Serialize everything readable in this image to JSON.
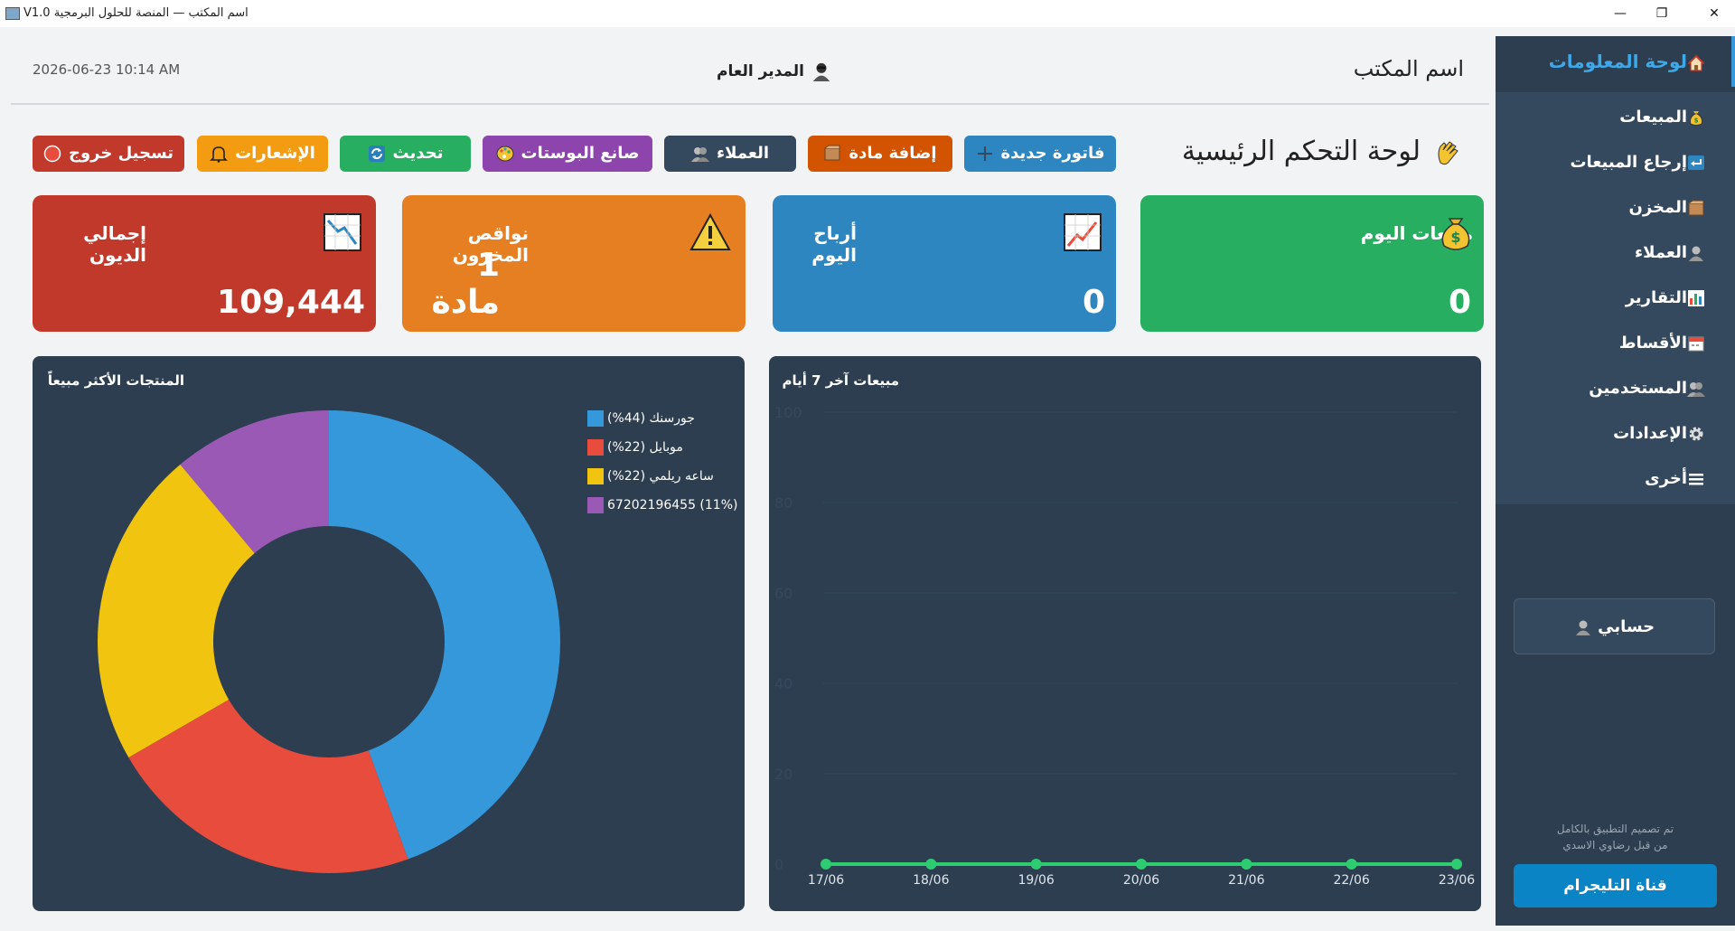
{
  "window": {
    "title": "V1.0 اسم المكتب — المنصة للحلول البرمجية"
  },
  "header": {
    "office_name": "اسم المكتب",
    "user": "المدير العام",
    "datetime": "2026-06-23  10:14 AM"
  },
  "page": {
    "title": "لوحة التحكم الرئيسية"
  },
  "toolbar": [
    {
      "key": "new-invoice",
      "label": "فاتورة جديدة",
      "color": "#2e86c1"
    },
    {
      "key": "add-item",
      "label": "إضافة مادة",
      "color": "#d35400"
    },
    {
      "key": "customers",
      "label": "العملاء",
      "color": "#34495e"
    },
    {
      "key": "poster-maker",
      "label": "صانع البوستات",
      "color": "#8e44ad"
    },
    {
      "key": "refresh",
      "label": "تحديث",
      "color": "#27ae60"
    },
    {
      "key": "notifications",
      "label": "الإشعارات",
      "color": "#f39c12"
    },
    {
      "key": "logout",
      "label": "تسجيل خروج",
      "color": "#c0392b"
    }
  ],
  "cards": [
    {
      "key": "today-sales",
      "title": "مبيعات اليوم",
      "value": "0",
      "color": "#27ae60",
      "icon": "money-bag-icon"
    },
    {
      "key": "today-profit",
      "title": "أرباح اليوم",
      "value": "0",
      "color": "#2e86c1",
      "icon": "chart-up-icon"
    },
    {
      "key": "stock-shortage",
      "title": "نواقص المخزون",
      "value": "1 مادة",
      "color": "#e67e22",
      "icon": "warning-icon"
    },
    {
      "key": "total-debts",
      "title": "إجمالي الديون",
      "value": "109,444",
      "color": "#c0392b",
      "icon": "chart-down-icon"
    }
  ],
  "sidebar": {
    "items": [
      {
        "key": "dashboard",
        "label": "لوحة المعلومات",
        "icon": "home-icon",
        "active": true
      },
      {
        "key": "sales",
        "label": "المبيعات",
        "icon": "money-bag-icon"
      },
      {
        "key": "sales-returns",
        "label": "إرجاع المبيعات",
        "icon": "return-arrow-icon"
      },
      {
        "key": "inventory",
        "label": "المخزن",
        "icon": "box-icon"
      },
      {
        "key": "customers",
        "label": "العملاء",
        "icon": "user-icon"
      },
      {
        "key": "reports",
        "label": "التقارير",
        "icon": "bar-chart-icon"
      },
      {
        "key": "installments",
        "label": "الأقساط",
        "icon": "calendar-icon"
      },
      {
        "key": "users",
        "label": "المستخدمين",
        "icon": "users-icon"
      },
      {
        "key": "settings",
        "label": "الإعدادات",
        "icon": "gear-icon"
      },
      {
        "key": "other",
        "label": "أخرى",
        "icon": "menu-icon"
      }
    ],
    "account_label": "حسابي",
    "credit_line1": "تم تصميم التطبيق بالكامل",
    "credit_line2": "من قبل رضاوي الاسدي",
    "telegram_label": "قناة التليجرام"
  },
  "chart_data": [
    {
      "type": "pie",
      "title": "المنتجات الأكثر مبيعاً",
      "donut": true,
      "legend_position": "top-right",
      "slices": [
        {
          "label": "جورسنك (44%)",
          "value": 44,
          "color": "#3498db"
        },
        {
          "label": "موبايل (22%)",
          "value": 22,
          "color": "#e74c3c"
        },
        {
          "label": "ساعه ريلمي (22%)",
          "value": 22,
          "color": "#f1c40f"
        },
        {
          "label": "67202196455 (11%)",
          "value": 11,
          "color": "#9b59b6"
        }
      ]
    },
    {
      "type": "line",
      "title": "مبيعات آخر 7 أيام",
      "x": [
        "17/06",
        "18/06",
        "19/06",
        "20/06",
        "21/06",
        "22/06",
        "23/06"
      ],
      "series": [
        {
          "values": [
            0,
            0,
            0,
            0,
            0,
            0,
            0
          ],
          "color": "#2ecc71"
        }
      ],
      "ylim": [
        0,
        100
      ],
      "yticks": [
        0,
        20,
        40,
        60,
        80,
        100
      ],
      "grid": true
    }
  ]
}
